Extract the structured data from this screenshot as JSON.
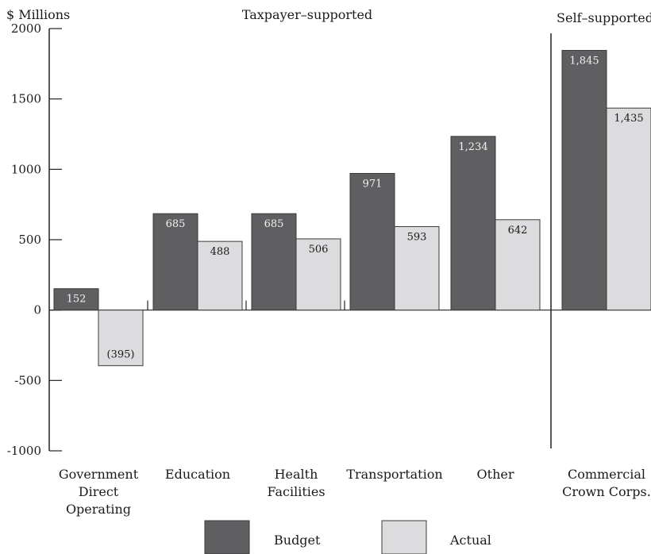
{
  "chart_data": {
    "type": "bar",
    "ylabel": "$ Millions",
    "ylim": [
      -1000,
      2000
    ],
    "yticks": [
      "2000",
      "1500",
      "1000",
      "500",
      "0",
      "-500",
      "-1000"
    ],
    "group_labels": {
      "left": "Taxpayer–supported",
      "right": "Self–supported"
    },
    "categories": [
      [
        "Government",
        "Direct",
        "Operating"
      ],
      [
        "Education"
      ],
      [
        "Health",
        "Facilities"
      ],
      [
        "Transportation"
      ],
      [
        "Other"
      ],
      [
        "Commercial",
        "Crown Corps."
      ]
    ],
    "series": [
      {
        "name": "Budget",
        "color": "#5f5f62",
        "values": [
          152,
          685,
          685,
          971,
          1234,
          1845
        ],
        "labels": [
          "152",
          "685",
          "685",
          "971",
          "1,234",
          "1,845"
        ]
      },
      {
        "name": "Actual",
        "color": "#dcdcdf",
        "values": [
          -395,
          488,
          506,
          593,
          642,
          1435
        ],
        "labels": [
          "(395)",
          "488",
          "506",
          "593",
          "642",
          "1,435"
        ]
      }
    ],
    "legend": {
      "position": "bottom"
    }
  }
}
